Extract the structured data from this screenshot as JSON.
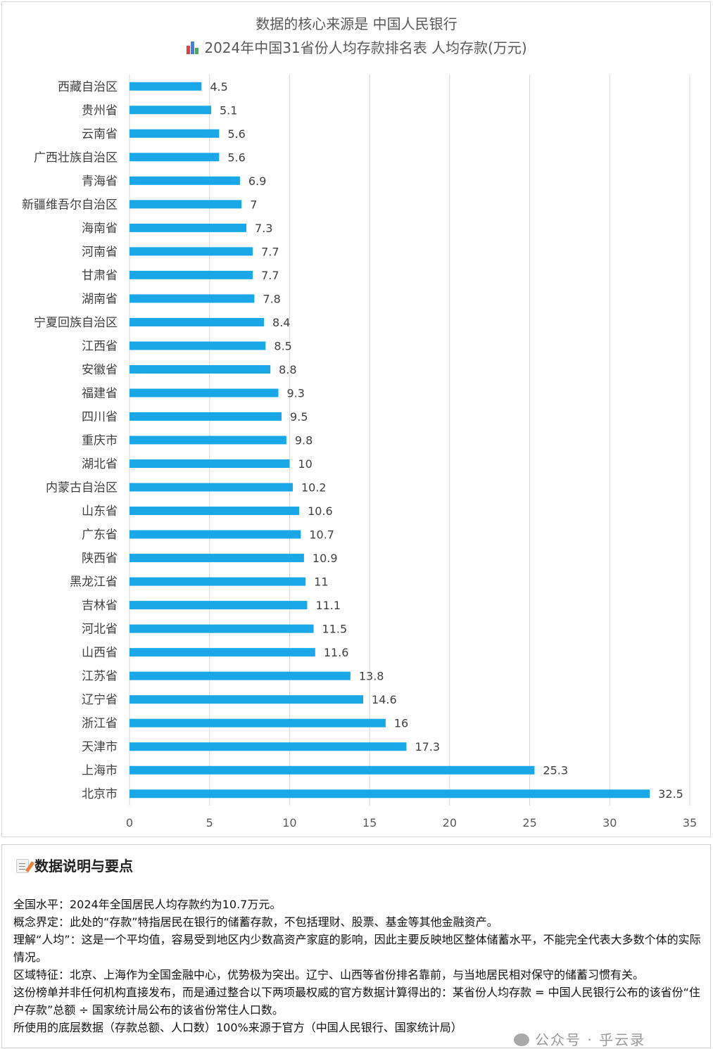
{
  "chart_data": {
    "type": "bar",
    "orientation": "horizontal",
    "title": "数据的核心来源是 中国人民银行",
    "subtitle": "2024年中国31省份人均存款排名表 人均存款(万元)",
    "categories": [
      "西藏自治区",
      "贵州省",
      "云南省",
      "广西壮族自治区",
      "青海省",
      "新疆维吾尔自治区",
      "海南省",
      "河南省",
      "甘肃省",
      "湖南省",
      "宁夏回族自治区",
      "江西省",
      "安徽省",
      "福建省",
      "四川省",
      "重庆市",
      "湖北省",
      "内蒙古自治区",
      "山东省",
      "广东省",
      "陕西省",
      "黑龙江省",
      "吉林省",
      "河北省",
      "山西省",
      "江苏省",
      "辽宁省",
      "浙江省",
      "天津市",
      "上海市",
      "北京市"
    ],
    "values": [
      4.5,
      5.1,
      5.6,
      5.6,
      6.9,
      7,
      7.3,
      7.7,
      7.7,
      7.8,
      8.4,
      8.5,
      8.8,
      9.3,
      9.5,
      9.8,
      10,
      10.2,
      10.6,
      10.7,
      10.9,
      11,
      11.1,
      11.5,
      11.6,
      13.8,
      14.6,
      16,
      17.3,
      25.3,
      32.5
    ],
    "xlim": [
      0,
      35
    ],
    "xticks": [
      0,
      5,
      10,
      15,
      20,
      25,
      30,
      35
    ],
    "grid": true,
    "bar_color": "#1aa7e8",
    "grid_color": "#d9d9d9"
  },
  "notes": {
    "header": "数据说明与要点",
    "lines": [
      "全国水平：2024年全国居民人均存款约为10.7万元。",
      "概念界定：此处的“存款”特指居民在银行的储蓄存款，不包括理财、股票、基金等其他金融资产。",
      "理解“人均”：这是一个平均值，容易受到地区内少数高资产家庭的影响，因此主要反映地区整体储蓄水平，不能完全代表大多数个体的实际情况。",
      "区域特征：北京、上海作为全国金融中心，优势极为突出。辽宁、山西等省份排名靠前，与当地居民相对保守的储蓄习惯有关。",
      "这份榜单并非任何机构直接发布，而是通过整合以下两项最权威的官方数据计算得出的：某省份人均存款 = 中国人民银行公布的该省份“住户存款”总额 ÷ 国家统计局公布的该省份常住人口数。",
      "所使用的底层数据（存款总额、人口数）100%来源于官方（中国人民银行、国家统计局）"
    ]
  },
  "watermark": "公众号 · 乎云录"
}
